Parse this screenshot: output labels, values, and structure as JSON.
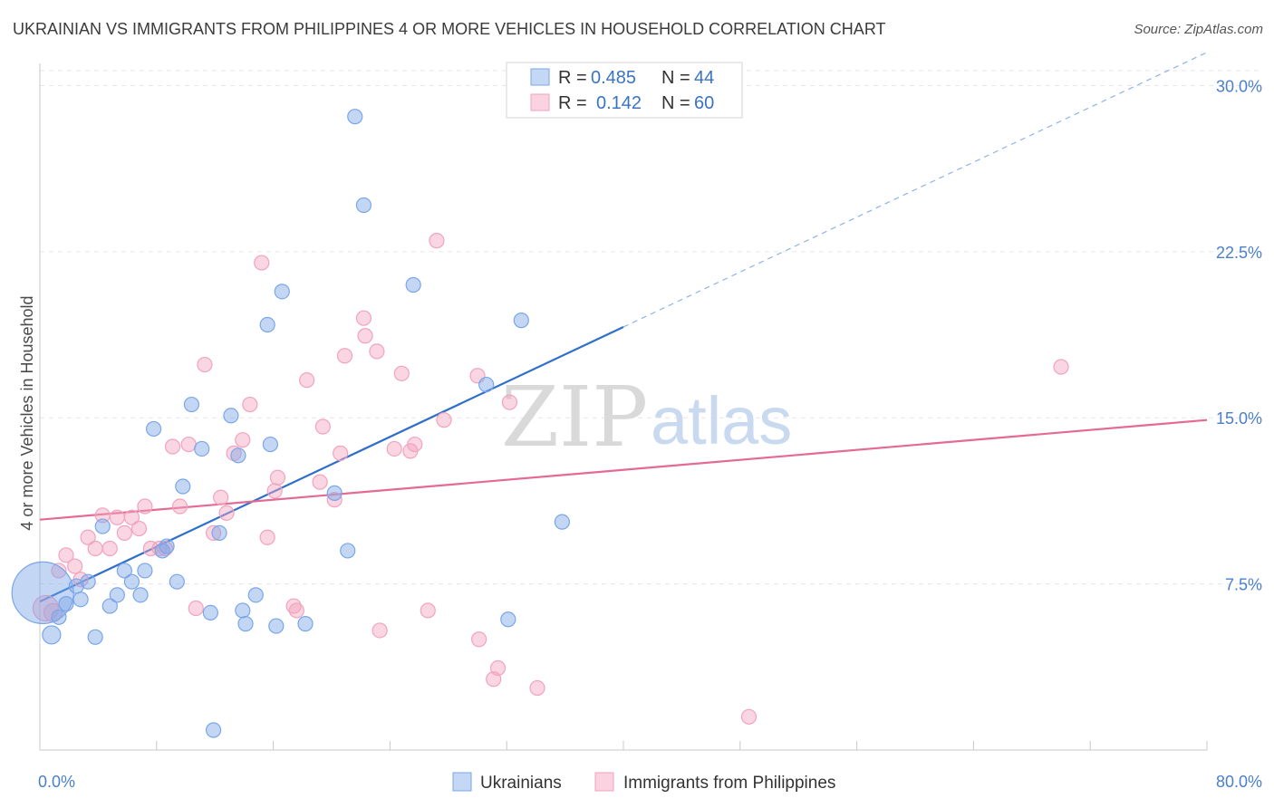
{
  "header": {
    "title": "UKRAINIAN VS IMMIGRANTS FROM PHILIPPINES 4 OR MORE VEHICLES IN HOUSEHOLD CORRELATION CHART",
    "source": "Source: ZipAtlas.com"
  },
  "watermark": {
    "zip": "ZIP",
    "atlas": "atlas"
  },
  "legend": {
    "rows": [
      {
        "r_label": "R =",
        "r_value": "0.485",
        "n_label": "N =",
        "n_value": "44"
      },
      {
        "r_label": "R =",
        "r_value": "0.142",
        "n_label": "N =",
        "n_value": "60"
      }
    ]
  },
  "bottom_legend": {
    "items": [
      "Ukrainians",
      "Immigrants from Philippines"
    ]
  },
  "chart_data": {
    "type": "scatter",
    "title": "UKRAINIAN VS IMMIGRANTS FROM PHILIPPINES 4 OR MORE VEHICLES IN HOUSEHOLD CORRELATION CHART",
    "ylabel": "4 or more Vehicles in Household",
    "xlabel": "",
    "xlim": [
      0,
      80
    ],
    "ylim": [
      0,
      31
    ],
    "x_tick_labels": [
      {
        "value": 0,
        "label": "0.0%"
      },
      {
        "value": 80,
        "label": "80.0%"
      }
    ],
    "y_tick_labels": [
      {
        "value": 7.5,
        "label": "7.5%"
      },
      {
        "value": 15,
        "label": "15.0%"
      },
      {
        "value": 22.5,
        "label": "22.5%"
      },
      {
        "value": 30,
        "label": "30.0%"
      }
    ],
    "grid": true,
    "legend_position": "top-center",
    "colors": {
      "ukrainians": "#7aa6e8",
      "philippines": "#f2a3bd",
      "ukr_line": "#2e6fcb",
      "phl_line": "#e46a93"
    },
    "series": [
      {
        "name": "Ukrainians",
        "r": 0.485,
        "n": 44,
        "trend": {
          "x0": 0,
          "y0": 6.7,
          "x1": 40,
          "y1": 19.1,
          "dash_to_x": 80
        },
        "points": [
          [
            0.2,
            7.1,
            34
          ],
          [
            0.8,
            5.2,
            10
          ],
          [
            1.3,
            6.0,
            8
          ],
          [
            1.8,
            6.6,
            8
          ],
          [
            2.5,
            7.4,
            8
          ],
          [
            2.8,
            6.8,
            8
          ],
          [
            3.3,
            7.6,
            8
          ],
          [
            3.8,
            5.1,
            8
          ],
          [
            4.3,
            10.1,
            8
          ],
          [
            4.8,
            6.5,
            8
          ],
          [
            5.3,
            7.0,
            8
          ],
          [
            5.8,
            8.1,
            8
          ],
          [
            6.3,
            7.6,
            8
          ],
          [
            6.9,
            7.0,
            8
          ],
          [
            7.2,
            8.1,
            8
          ],
          [
            7.8,
            14.5,
            8
          ],
          [
            8.4,
            9.0,
            8
          ],
          [
            8.7,
            9.2,
            8
          ],
          [
            9.4,
            7.6,
            8
          ],
          [
            9.8,
            11.9,
            8
          ],
          [
            10.4,
            15.6,
            8
          ],
          [
            11.1,
            13.6,
            8
          ],
          [
            11.7,
            6.2,
            8
          ],
          [
            11.9,
            0.9,
            8
          ],
          [
            12.3,
            9.8,
            8
          ],
          [
            13.1,
            15.1,
            8
          ],
          [
            13.6,
            13.3,
            8
          ],
          [
            13.9,
            6.3,
            8
          ],
          [
            14.1,
            5.7,
            8
          ],
          [
            14.8,
            7.0,
            8
          ],
          [
            15.6,
            19.2,
            8
          ],
          [
            15.8,
            13.8,
            8
          ],
          [
            16.2,
            5.6,
            8
          ],
          [
            16.6,
            20.7,
            8
          ],
          [
            18.2,
            5.7,
            8
          ],
          [
            20.2,
            11.6,
            8
          ],
          [
            21.1,
            9.0,
            8
          ],
          [
            21.6,
            28.6,
            8
          ],
          [
            22.2,
            24.6,
            8
          ],
          [
            25.6,
            21.0,
            8
          ],
          [
            30.6,
            16.5,
            8
          ],
          [
            32.1,
            5.9,
            8
          ],
          [
            33.0,
            19.4,
            8
          ],
          [
            35.8,
            10.3,
            8
          ]
        ]
      },
      {
        "name": "Immigrants from Philippines",
        "r": 0.142,
        "n": 60,
        "trend": {
          "x0": 0,
          "y0": 10.4,
          "x1": 80,
          "y1": 14.9
        },
        "points": [
          [
            0.4,
            6.4,
            14
          ],
          [
            0.9,
            6.2,
            10
          ],
          [
            1.3,
            8.1,
            8
          ],
          [
            1.8,
            8.8,
            8
          ],
          [
            2.4,
            8.3,
            8
          ],
          [
            2.8,
            7.7,
            8
          ],
          [
            3.3,
            9.6,
            8
          ],
          [
            3.8,
            9.1,
            8
          ],
          [
            4.3,
            10.6,
            8
          ],
          [
            4.8,
            9.1,
            8
          ],
          [
            5.3,
            10.5,
            8
          ],
          [
            5.8,
            9.8,
            8
          ],
          [
            6.3,
            10.5,
            8
          ],
          [
            6.8,
            10.0,
            8
          ],
          [
            7.2,
            11.0,
            8
          ],
          [
            7.6,
            9.1,
            8
          ],
          [
            8.2,
            9.1,
            8
          ],
          [
            8.6,
            9.1,
            8
          ],
          [
            9.1,
            13.7,
            8
          ],
          [
            9.6,
            11.0,
            8
          ],
          [
            10.2,
            13.8,
            8
          ],
          [
            10.7,
            6.4,
            8
          ],
          [
            11.3,
            17.4,
            8
          ],
          [
            11.9,
            9.8,
            8
          ],
          [
            12.4,
            11.4,
            8
          ],
          [
            12.8,
            10.7,
            8
          ],
          [
            13.3,
            13.4,
            8
          ],
          [
            13.9,
            14.0,
            8
          ],
          [
            14.4,
            15.6,
            8
          ],
          [
            15.2,
            22.0,
            8
          ],
          [
            15.6,
            9.6,
            8
          ],
          [
            16.1,
            11.7,
            8
          ],
          [
            16.3,
            12.3,
            8
          ],
          [
            17.4,
            6.5,
            8
          ],
          [
            17.6,
            6.3,
            8
          ],
          [
            18.3,
            16.7,
            8
          ],
          [
            19.2,
            12.1,
            8
          ],
          [
            19.4,
            14.6,
            8
          ],
          [
            20.2,
            11.3,
            8
          ],
          [
            20.6,
            13.4,
            8
          ],
          [
            20.9,
            17.8,
            8
          ],
          [
            22.2,
            19.5,
            8
          ],
          [
            22.3,
            18.7,
            8
          ],
          [
            23.1,
            18.0,
            8
          ],
          [
            23.3,
            5.4,
            8
          ],
          [
            24.3,
            13.6,
            8
          ],
          [
            24.8,
            17.0,
            8
          ],
          [
            25.4,
            13.5,
            8
          ],
          [
            25.7,
            13.8,
            8
          ],
          [
            26.6,
            6.3,
            8
          ],
          [
            27.2,
            23.0,
            8
          ],
          [
            27.7,
            14.9,
            8
          ],
          [
            30.0,
            16.9,
            8
          ],
          [
            30.1,
            5.0,
            8
          ],
          [
            31.1,
            3.2,
            8
          ],
          [
            31.4,
            3.7,
            8
          ],
          [
            32.2,
            15.7,
            8
          ],
          [
            34.1,
            2.8,
            8
          ],
          [
            48.6,
            1.5,
            8
          ],
          [
            70.0,
            17.3,
            8
          ]
        ]
      }
    ]
  }
}
